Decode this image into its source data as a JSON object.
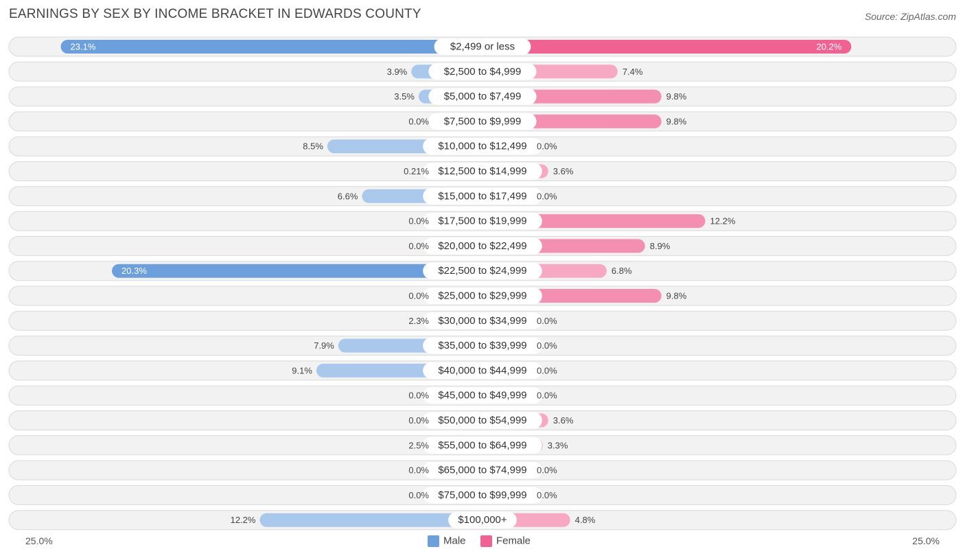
{
  "chart_data": {
    "type": "bar",
    "orientation": "horizontal-diverging",
    "title": "EARNINGS BY SEX BY INCOME BRACKET IN EDWARDS COUNTY",
    "source": "Source: ZipAtlas.com",
    "categories": [
      "$2,499 or less",
      "$2,500 to $4,999",
      "$5,000 to $7,499",
      "$7,500 to $9,999",
      "$10,000 to $12,499",
      "$12,500 to $14,999",
      "$15,000 to $17,499",
      "$17,500 to $19,999",
      "$20,000 to $22,499",
      "$22,500 to $24,999",
      "$25,000 to $29,999",
      "$30,000 to $34,999",
      "$35,000 to $39,999",
      "$40,000 to $44,999",
      "$45,000 to $49,999",
      "$50,000 to $54,999",
      "$55,000 to $64,999",
      "$65,000 to $74,999",
      "$75,000 to $99,999",
      "$100,000+"
    ],
    "series": [
      {
        "name": "Male",
        "color": "#6ca0dc",
        "values": [
          23.1,
          3.9,
          3.5,
          0.0,
          8.5,
          0.21,
          6.6,
          0.0,
          0.0,
          20.3,
          0.0,
          2.3,
          7.9,
          9.1,
          0.0,
          0.0,
          2.5,
          0.0,
          0.0,
          12.2
        ],
        "labels": [
          "23.1%",
          "3.9%",
          "3.5%",
          "0.0%",
          "8.5%",
          "0.21%",
          "6.6%",
          "0.0%",
          "0.0%",
          "20.3%",
          "0.0%",
          "2.3%",
          "7.9%",
          "9.1%",
          "0.0%",
          "0.0%",
          "2.5%",
          "0.0%",
          "0.0%",
          "12.2%"
        ]
      },
      {
        "name": "Female",
        "color": "#f06292",
        "values": [
          20.2,
          7.4,
          9.8,
          9.8,
          0.0,
          3.6,
          0.0,
          12.2,
          8.9,
          6.8,
          9.8,
          0.0,
          0.0,
          0.0,
          0.0,
          3.6,
          3.3,
          0.0,
          0.0,
          4.8
        ],
        "labels": [
          "20.2%",
          "7.4%",
          "9.8%",
          "9.8%",
          "0.0%",
          "3.6%",
          "0.0%",
          "12.2%",
          "8.9%",
          "6.8%",
          "9.8%",
          "0.0%",
          "0.0%",
          "0.0%",
          "0.0%",
          "3.6%",
          "3.3%",
          "0.0%",
          "0.0%",
          "4.8%"
        ]
      }
    ],
    "xlim": [
      -25,
      25
    ],
    "axis_labels": {
      "left": "25.0%",
      "right": "25.0%"
    },
    "legend": {
      "position": "bottom-center",
      "items": [
        "Male",
        "Female"
      ]
    }
  }
}
